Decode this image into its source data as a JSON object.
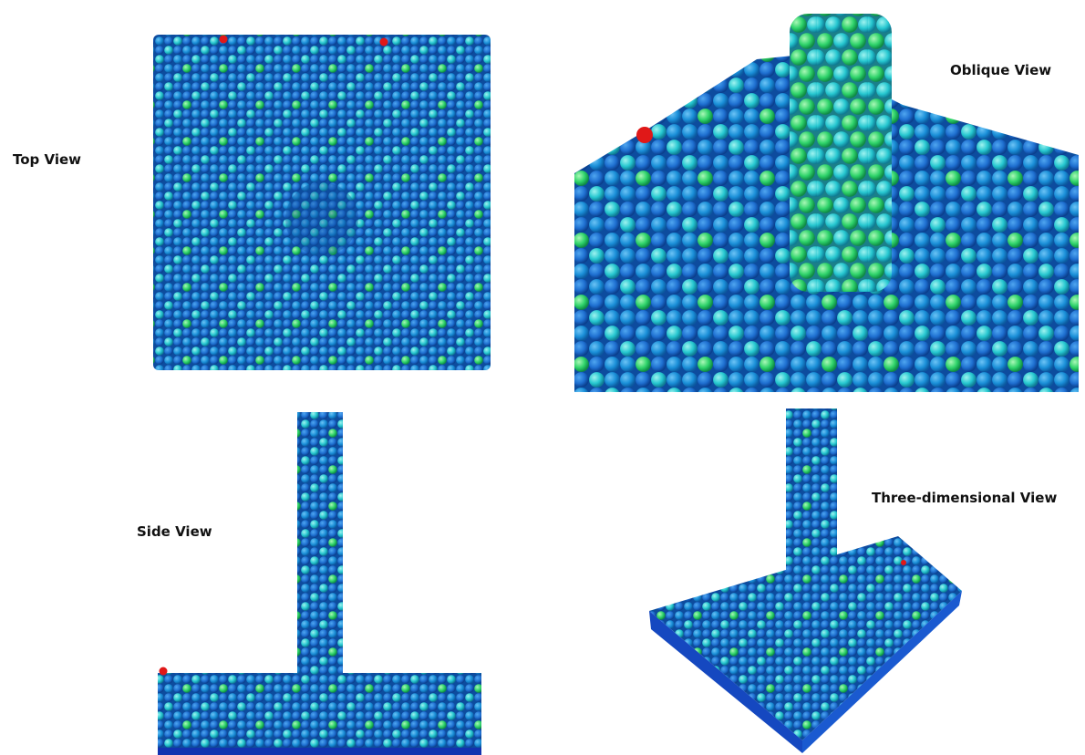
{
  "panels": [
    {
      "label": "Top View"
    },
    {
      "label": "Oblique View"
    },
    {
      "label": "Side View"
    },
    {
      "label": "Three-dimensional View"
    }
  ]
}
